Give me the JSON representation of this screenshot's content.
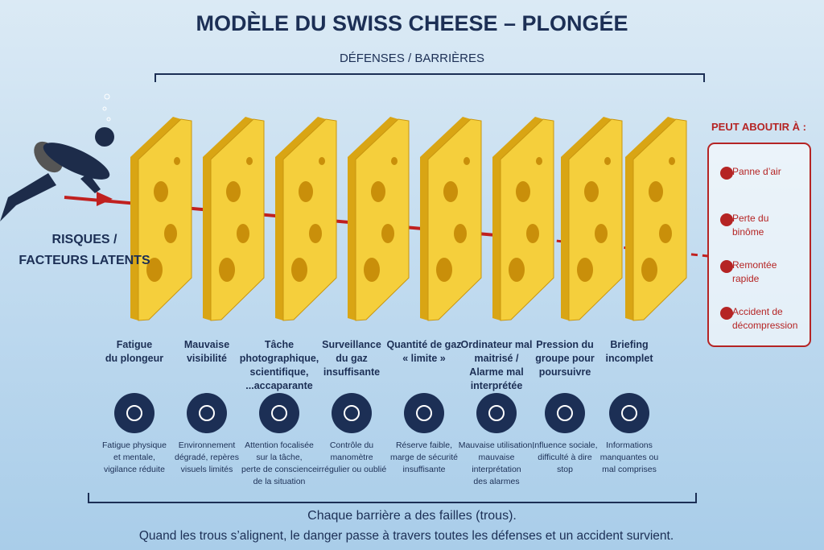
{
  "title": "MODÈLE DU SWISS CHEESE – PLONGÉE",
  "defenses_label": "DÉFENSES / BARRIÈRES",
  "risk_label": [
    "RISQUES /",
    "FACTEURS LATENTS"
  ],
  "barriers": [
    {
      "label": [
        "Fatigue",
        "du plongeur"
      ],
      "detail": [
        "Fatigue physique",
        "et mentale,",
        "vigilance réduite"
      ]
    },
    {
      "label": [
        "Mauvaise",
        "visibilité"
      ],
      "detail": [
        "Environnement",
        "dégradé, repères",
        "visuels limités"
      ]
    },
    {
      "label": [
        "Tâche",
        "photographique,",
        "scientifique,",
        "...accaparante"
      ],
      "detail": [
        "Attention focalisée",
        "sur la tâche,",
        "perte de conscience",
        "de la situation"
      ]
    },
    {
      "label": [
        "Surveillance",
        "du gaz",
        "insuffisante"
      ],
      "detail": [
        "Contrôle du",
        "manomètre",
        "irrégulier ou oublié"
      ]
    },
    {
      "label": [
        "Quantité de gaz",
        "« limite »"
      ],
      "detail": [
        "Réserve faible,",
        "marge de sécurité",
        "insuffisante"
      ]
    },
    {
      "label": [
        "Ordinateur mal",
        "maitrisé /",
        "Alarme mal",
        "interprétée"
      ],
      "detail": [
        "Mauvaise utilisation,",
        "mauvaise",
        "interprétation",
        "des alarmes"
      ]
    },
    {
      "label": [
        "Pression du",
        "groupe pour",
        "poursuivre"
      ],
      "detail": [
        "Influence sociale,",
        "difficulté à dire",
        "stop"
      ]
    },
    {
      "label": [
        "Briefing",
        "incomplet"
      ],
      "detail": [
        "Informations",
        "manquantes ou",
        "mal comprises"
      ]
    }
  ],
  "outcomes": {
    "header": "PEUT ABOUTIR À :",
    "items": [
      [
        "Panne d’air"
      ],
      [
        "Perte du",
        "binôme"
      ],
      [
        "Remontée",
        "rapide"
      ],
      [
        "Accident de",
        "décompression"
      ]
    ]
  },
  "footer": [
    "Chaque barrière a des failles (trous).",
    "Quand les trous s’alignent, le danger passe à travers toutes les défenses et un accident survient."
  ]
}
